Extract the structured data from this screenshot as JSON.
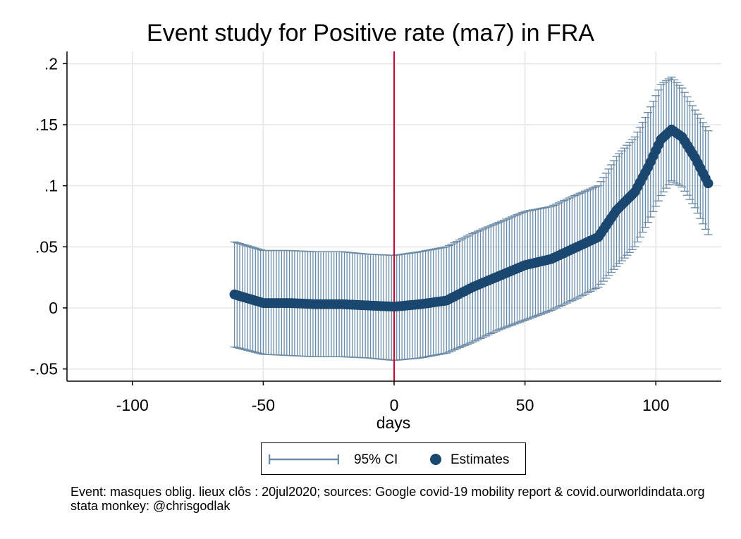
{
  "chart_data": {
    "type": "scatter",
    "title": "Event study for Positive rate (ma7) in FRA",
    "xlabel": "days",
    "ylabel": "",
    "xlim": [
      -125,
      125
    ],
    "ylim": [
      -0.06,
      0.21
    ],
    "xticks": [
      -100,
      -50,
      0,
      50,
      100
    ],
    "xtick_labels": [
      "-100",
      "-50",
      "0",
      "50",
      "100"
    ],
    "yticks": [
      -0.05,
      0,
      0.05,
      0.1,
      0.15,
      0.2
    ],
    "ytick_labels": [
      "-.05",
      "0",
      ".05",
      ".1",
      ".15",
      ".2"
    ],
    "grid": true,
    "event_line_x": 0,
    "legend": {
      "position": "bottom",
      "items": [
        "95% CI",
        "Estimates"
      ]
    },
    "colors": {
      "ci": "#6b8aa6",
      "estimate": "#1a476f",
      "event_line": "#c10534",
      "grid": "#e5e5e5"
    },
    "series": [
      {
        "name": "Estimates",
        "x": [
          -61,
          -50,
          -40,
          -30,
          -20,
          -10,
          0,
          10,
          20,
          30,
          40,
          50,
          60,
          70,
          78,
          85,
          92,
          97,
          102,
          106,
          110,
          115,
          120
        ],
        "y": [
          0.011,
          0.004,
          0.004,
          0.003,
          0.003,
          0.002,
          0.001,
          0.003,
          0.006,
          0.017,
          0.026,
          0.035,
          0.04,
          0.05,
          0.058,
          0.08,
          0.095,
          0.115,
          0.138,
          0.146,
          0.14,
          0.123,
          0.102
        ]
      },
      {
        "name": "95% CI",
        "x": [
          -61,
          -50,
          -40,
          -30,
          -20,
          -10,
          0,
          10,
          20,
          30,
          40,
          50,
          60,
          70,
          78,
          85,
          92,
          97,
          102,
          106,
          110,
          115,
          120
        ],
        "lower": [
          -0.032,
          -0.038,
          -0.039,
          -0.04,
          -0.04,
          -0.041,
          -0.043,
          -0.041,
          -0.037,
          -0.028,
          -0.018,
          -0.01,
          -0.002,
          0.008,
          0.017,
          0.034,
          0.05,
          0.07,
          0.092,
          0.104,
          0.099,
          0.082,
          0.06
        ],
        "upper": [
          0.054,
          0.047,
          0.047,
          0.046,
          0.046,
          0.044,
          0.043,
          0.046,
          0.05,
          0.061,
          0.07,
          0.079,
          0.083,
          0.093,
          0.1,
          0.124,
          0.14,
          0.16,
          0.183,
          0.189,
          0.18,
          0.162,
          0.145
        ]
      }
    ],
    "notes": [
      "Event: masques oblig. lieux clôs : 20jul2020; sources: Google covid-19 mobility report & covid.ourworldindata.org",
      "stata monkey: @chrisgodlak"
    ]
  }
}
